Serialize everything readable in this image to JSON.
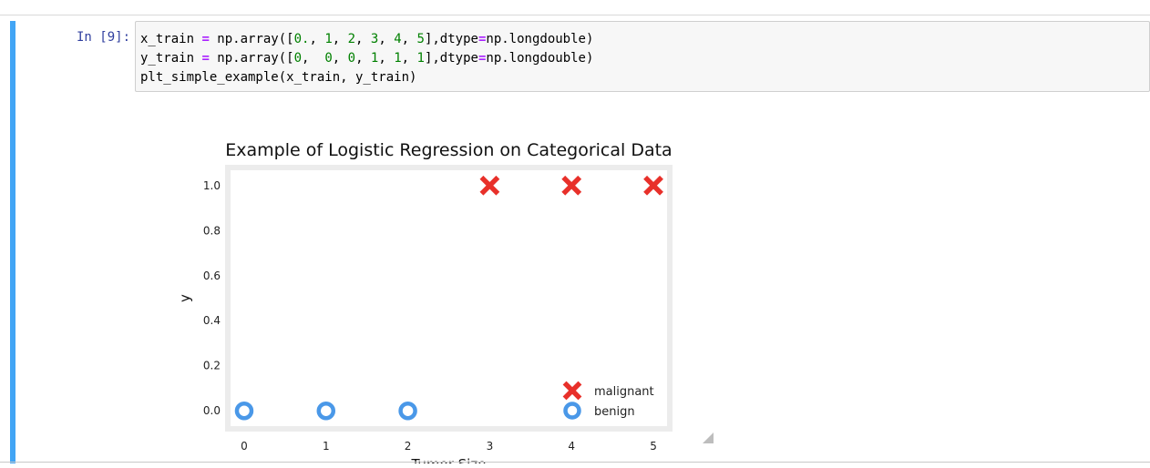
{
  "cell": {
    "prompt": "In [9]:",
    "code_lines": [
      [
        {
          "t": "x_train ",
          "c": ""
        },
        {
          "t": "=",
          "c": "op"
        },
        {
          "t": " np.array([",
          "c": ""
        },
        {
          "t": "0.",
          "c": "num"
        },
        {
          "t": ", ",
          "c": ""
        },
        {
          "t": "1",
          "c": "num"
        },
        {
          "t": ", ",
          "c": ""
        },
        {
          "t": "2",
          "c": "num"
        },
        {
          "t": ", ",
          "c": ""
        },
        {
          "t": "3",
          "c": "num"
        },
        {
          "t": ", ",
          "c": ""
        },
        {
          "t": "4",
          "c": "num"
        },
        {
          "t": ", ",
          "c": ""
        },
        {
          "t": "5",
          "c": "num"
        },
        {
          "t": "],dtype",
          "c": ""
        },
        {
          "t": "=",
          "c": "op"
        },
        {
          "t": "np.longdouble)",
          "c": ""
        }
      ],
      [
        {
          "t": "y_train ",
          "c": ""
        },
        {
          "t": "=",
          "c": "op"
        },
        {
          "t": " np.array([",
          "c": ""
        },
        {
          "t": "0",
          "c": "num"
        },
        {
          "t": ",  ",
          "c": ""
        },
        {
          "t": "0",
          "c": "num"
        },
        {
          "t": ", ",
          "c": ""
        },
        {
          "t": "0",
          "c": "num"
        },
        {
          "t": ", ",
          "c": ""
        },
        {
          "t": "1",
          "c": "num"
        },
        {
          "t": ", ",
          "c": ""
        },
        {
          "t": "1",
          "c": "num"
        },
        {
          "t": ", ",
          "c": ""
        },
        {
          "t": "1",
          "c": "num"
        },
        {
          "t": "],dtype",
          "c": ""
        },
        {
          "t": "=",
          "c": "op"
        },
        {
          "t": "np.longdouble)",
          "c": ""
        }
      ],
      [
        {
          "t": "plt_simple_example(x_train, y_train)",
          "c": ""
        }
      ]
    ]
  },
  "chart_data": {
    "type": "scatter",
    "title": "Example of Logistic Regression on Categorical Data",
    "xlabel": "Tumor Size",
    "ylabel": "y",
    "xlim": [
      -0.2,
      5.2
    ],
    "ylim": [
      -0.08,
      1.08
    ],
    "xticks": [
      0,
      1,
      2,
      3,
      4,
      5
    ],
    "yticks": [
      0.0,
      0.2,
      0.4,
      0.6,
      0.8,
      1.0
    ],
    "ytick_labels": [
      "0.0",
      "0.2",
      "0.4",
      "0.6",
      "0.8",
      "1.0"
    ],
    "legend_position": "lower-right",
    "grid": false,
    "series": [
      {
        "name": "malignant",
        "marker": "x",
        "color": "#e8302a",
        "x": [
          3,
          4,
          5
        ],
        "y": [
          1,
          1,
          1
        ]
      },
      {
        "name": "benign",
        "marker": "o",
        "color": "#4a98e8",
        "x": [
          0,
          1,
          2
        ],
        "y": [
          0,
          0,
          0
        ]
      }
    ]
  }
}
